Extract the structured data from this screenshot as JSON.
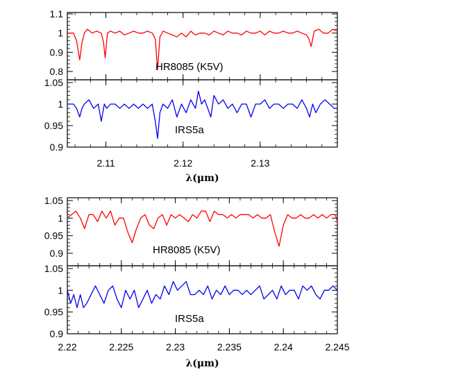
{
  "chart_data": [
    {
      "type": "line",
      "xlabel": "λ(μm)",
      "xlim": [
        2.105,
        2.14
      ],
      "xticks": [
        2.11,
        2.12,
        2.13
      ],
      "xtick_labels": [
        "2.11",
        "2.12",
        "2.13"
      ],
      "panels": [
        {
          "annotation": "HR8085 (K5V)",
          "color": "#ff0000",
          "ylim": [
            0.78,
            1.1
          ],
          "yticks": [
            0.8,
            0.9,
            1.0,
            1.1
          ],
          "ytick_labels": [
            "0.8",
            "0.9",
            "1",
            "1.1"
          ],
          "x": [
            2.105,
            2.1058,
            2.1062,
            2.1066,
            2.1069,
            2.1072,
            2.1076,
            2.1082,
            2.1088,
            2.1094,
            2.1097,
            2.1099,
            2.1102,
            2.1106,
            2.1112,
            2.1118,
            2.1124,
            2.113,
            2.1136,
            2.1142,
            2.1148,
            2.1154,
            2.116,
            2.1164,
            2.1167,
            2.117,
            2.1174,
            2.118,
            2.1186,
            2.1192,
            2.1198,
            2.1204,
            2.121,
            2.1216,
            2.1222,
            2.1228,
            2.1234,
            2.124,
            2.1246,
            2.1252,
            2.1258,
            2.1264,
            2.127,
            2.1276,
            2.1282,
            2.1288,
            2.1294,
            2.13,
            2.1306,
            2.1312,
            2.1318,
            2.1324,
            2.133,
            2.1336,
            2.1342,
            2.1348,
            2.1354,
            2.136,
            2.1363,
            2.1366,
            2.137,
            2.1376,
            2.1382,
            2.1388,
            2.1394,
            2.14
          ],
          "y": [
            1.0,
            1.0,
            0.96,
            0.86,
            0.95,
            1.0,
            1.02,
            1.0,
            1.01,
            1.0,
            0.95,
            0.87,
            1.0,
            1.01,
            1.0,
            1.01,
            0.99,
            1.0,
            1.01,
            1.0,
            1.0,
            1.01,
            1.0,
            0.97,
            0.81,
            0.98,
            1.01,
            1.0,
            0.99,
            0.98,
            1.0,
            0.98,
            1.01,
            0.99,
            1.0,
            1.0,
            0.99,
            1.01,
            1.0,
            0.99,
            1.01,
            1.0,
            1.0,
            0.99,
            1.01,
            1.0,
            1.0,
            1.01,
            0.99,
            1.01,
            1.0,
            1.0,
            1.01,
            1.0,
            1.0,
            1.01,
            1.0,
            0.99,
            0.97,
            0.93,
            1.01,
            1.02,
            1.0,
            1.0,
            1.02,
            1.01
          ]
        },
        {
          "annotation": "IRS5a",
          "color": "#0000ee",
          "ylim": [
            0.9,
            1.05
          ],
          "yticks": [
            0.9,
            0.95,
            1.0,
            1.05
          ],
          "ytick_labels": [
            "0.9",
            "0.95",
            "1",
            "1.05"
          ],
          "x": [
            2.105,
            2.1058,
            2.1062,
            2.1066,
            2.1069,
            2.1072,
            2.1078,
            2.1084,
            2.109,
            2.1094,
            2.1098,
            2.1101,
            2.1106,
            2.1112,
            2.1118,
            2.1124,
            2.113,
            2.1136,
            2.1142,
            2.1148,
            2.1154,
            2.116,
            2.1164,
            2.1167,
            2.117,
            2.1174,
            2.118,
            2.1186,
            2.1192,
            2.1198,
            2.1204,
            2.121,
            2.1216,
            2.122,
            2.1224,
            2.1228,
            2.1232,
            2.1236,
            2.124,
            2.1246,
            2.1252,
            2.1258,
            2.1264,
            2.127,
            2.1276,
            2.1282,
            2.1288,
            2.1294,
            2.13,
            2.1306,
            2.1312,
            2.1318,
            2.1324,
            2.133,
            2.1336,
            2.1342,
            2.1348,
            2.1354,
            2.136,
            2.1364,
            2.1368,
            2.1372,
            2.1378,
            2.1384,
            2.139,
            2.1396,
            2.14
          ],
          "y": [
            1.0,
            1.0,
            0.99,
            0.97,
            0.99,
            1.0,
            1.01,
            0.99,
            1.0,
            0.96,
            1.0,
            0.99,
            1.0,
            1.0,
            0.99,
            1.0,
            0.99,
            1.0,
            0.99,
            1.0,
            0.99,
            1.0,
            0.96,
            0.92,
            0.98,
            1.0,
            0.99,
            1.01,
            0.97,
            1.0,
            0.98,
            1.01,
            0.99,
            1.03,
            1.0,
            1.01,
            0.99,
            0.97,
            1.02,
            1.0,
            1.01,
            0.99,
            1.0,
            0.98,
            1.0,
            1.0,
            0.97,
            1.0,
            1.0,
            1.01,
            0.99,
            1.0,
            1.0,
            0.99,
            1.0,
            1.0,
            0.99,
            1.01,
            0.99,
            0.97,
            1.0,
            0.98,
            1.0,
            1.01,
            1.0,
            0.99,
            0.99
          ]
        }
      ]
    },
    {
      "type": "line",
      "xlabel": "λ(μm)",
      "xlim": [
        2.22,
        2.245
      ],
      "xticks": [
        2.22,
        2.225,
        2.23,
        2.235,
        2.24,
        2.245
      ],
      "xtick_labels": [
        "2.22",
        "2.225",
        "2.23",
        "2.235",
        "2.24",
        "2.245"
      ],
      "panels": [
        {
          "annotation": "HR8085 (K5V)",
          "color": "#ff0000",
          "ylim": [
            0.885,
            1.05
          ],
          "yticks": [
            0.9,
            0.95,
            1.0,
            1.05
          ],
          "ytick_labels": [
            "0.9",
            "0.95",
            "1",
            "1.05"
          ],
          "x": [
            2.22,
            2.2204,
            2.2208,
            2.2212,
            2.2216,
            2.222,
            2.2224,
            2.2228,
            2.2232,
            2.2236,
            2.224,
            2.2244,
            2.2248,
            2.2252,
            2.2256,
            2.226,
            2.2264,
            2.2268,
            2.2272,
            2.2276,
            2.228,
            2.2284,
            2.2288,
            2.2292,
            2.2296,
            2.23,
            2.2304,
            2.2308,
            2.2312,
            2.2316,
            2.232,
            2.2324,
            2.2328,
            2.2332,
            2.2336,
            2.234,
            2.2344,
            2.2348,
            2.2352,
            2.2356,
            2.236,
            2.2364,
            2.2368,
            2.2372,
            2.2376,
            2.238,
            2.2384,
            2.2388,
            2.2392,
            2.2396,
            2.24,
            2.2404,
            2.2408,
            2.2412,
            2.2416,
            2.242,
            2.2424,
            2.2428,
            2.2432,
            2.2436,
            2.244,
            2.2444,
            2.2448,
            2.245
          ],
          "y": [
            1.0,
            1.01,
            1.02,
            1.0,
            0.97,
            1.01,
            1.01,
            0.99,
            1.02,
            1.0,
            1.02,
            0.98,
            1.0,
            1.0,
            0.96,
            0.93,
            0.97,
            1.0,
            1.01,
            0.98,
            0.97,
            1.0,
            1.01,
            0.98,
            1.01,
            1.0,
            1.01,
            1.0,
            0.99,
            1.01,
            1.0,
            1.02,
            1.02,
            0.99,
            1.02,
            1.01,
            1.01,
            1.0,
            1.01,
            1.0,
            1.01,
            1.01,
            1.01,
            1.0,
            1.01,
            1.0,
            1.0,
            1.01,
            0.96,
            0.92,
            0.98,
            1.01,
            1.0,
            1.0,
            1.01,
            1.0,
            1.0,
            1.01,
            1.0,
            1.01,
            1.0,
            1.01,
            1.01,
            0.99
          ]
        },
        {
          "annotation": "IRS5a",
          "color": "#0000ee",
          "ylim": [
            0.9,
            1.05
          ],
          "yticks": [
            0.9,
            0.95,
            1.0,
            1.05
          ],
          "ytick_labels": [
            "0.9",
            "0.95",
            "1",
            "1.05"
          ],
          "x": [
            2.22,
            2.2203,
            2.2206,
            2.2209,
            2.2212,
            2.2215,
            2.2218,
            2.2222,
            2.2226,
            2.223,
            2.2234,
            2.2238,
            2.2242,
            2.2246,
            2.225,
            2.2254,
            2.2258,
            2.2262,
            2.2266,
            2.227,
            2.2274,
            2.2278,
            2.2282,
            2.2286,
            2.229,
            2.2294,
            2.2298,
            2.2302,
            2.2306,
            2.231,
            2.2314,
            2.2318,
            2.2322,
            2.2326,
            2.233,
            2.2334,
            2.2338,
            2.2342,
            2.2346,
            2.235,
            2.2354,
            2.2358,
            2.2362,
            2.2366,
            2.237,
            2.2374,
            2.2378,
            2.2382,
            2.2386,
            2.239,
            2.2394,
            2.2398,
            2.2402,
            2.2406,
            2.241,
            2.2414,
            2.2418,
            2.2422,
            2.2426,
            2.243,
            2.2434,
            2.2438,
            2.2442,
            2.2446,
            2.245
          ],
          "y": [
            1.0,
            0.97,
            0.99,
            0.96,
            0.99,
            0.96,
            0.97,
            0.99,
            1.01,
            0.99,
            0.97,
            1.0,
            1.01,
            0.98,
            0.96,
            1.0,
            0.98,
            1.0,
            0.96,
            0.98,
            1.0,
            0.97,
            0.99,
            0.98,
            1.01,
            0.99,
            1.02,
            1.0,
            1.01,
            1.02,
            0.99,
            0.99,
            1.0,
            0.99,
            1.01,
            0.98,
            1.0,
            0.99,
            1.01,
            0.99,
            1.0,
            1.0,
            0.99,
            1.0,
            0.99,
            1.0,
            1.01,
            0.98,
            0.99,
            1.0,
            0.98,
            1.01,
            0.99,
            1.0,
            1.0,
            0.98,
            1.01,
            1.0,
            1.01,
            0.99,
            0.98,
            1.0,
            1.0,
            1.01,
            1.0
          ]
        }
      ]
    }
  ]
}
